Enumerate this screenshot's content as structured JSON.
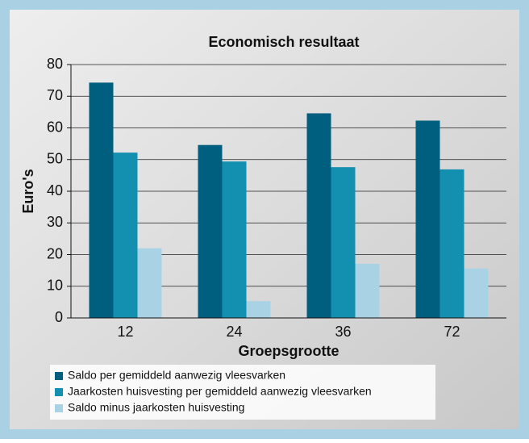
{
  "chart_data": {
    "type": "bar",
    "title": "Economisch resultaat",
    "x_label": "Groepsgrootte",
    "y_label": "Euro's",
    "categories": [
      "12",
      "24",
      "36",
      "72"
    ],
    "series": [
      {
        "name": "Saldo per gemiddeld aanwezig vleesvarken",
        "color": "#005f7f",
        "values": [
          74.3,
          54.6,
          64.6,
          62.3
        ]
      },
      {
        "name": "Jaarkosten huisvesting per gemiddeld aanwezig vleesvarken",
        "color": "#138fb0",
        "values": [
          52.2,
          49.4,
          47.6,
          46.9
        ]
      },
      {
        "name": "Saldo minus jaarkosten huisvesting",
        "color": "#a9d3e5",
        "values": [
          22.0,
          5.3,
          17.1,
          15.6
        ]
      }
    ],
    "ylim": [
      0,
      80
    ],
    "yticks": [
      0,
      10,
      20,
      30,
      40,
      50,
      60,
      70,
      80
    ],
    "grid": true,
    "legend": "bottom-left"
  }
}
